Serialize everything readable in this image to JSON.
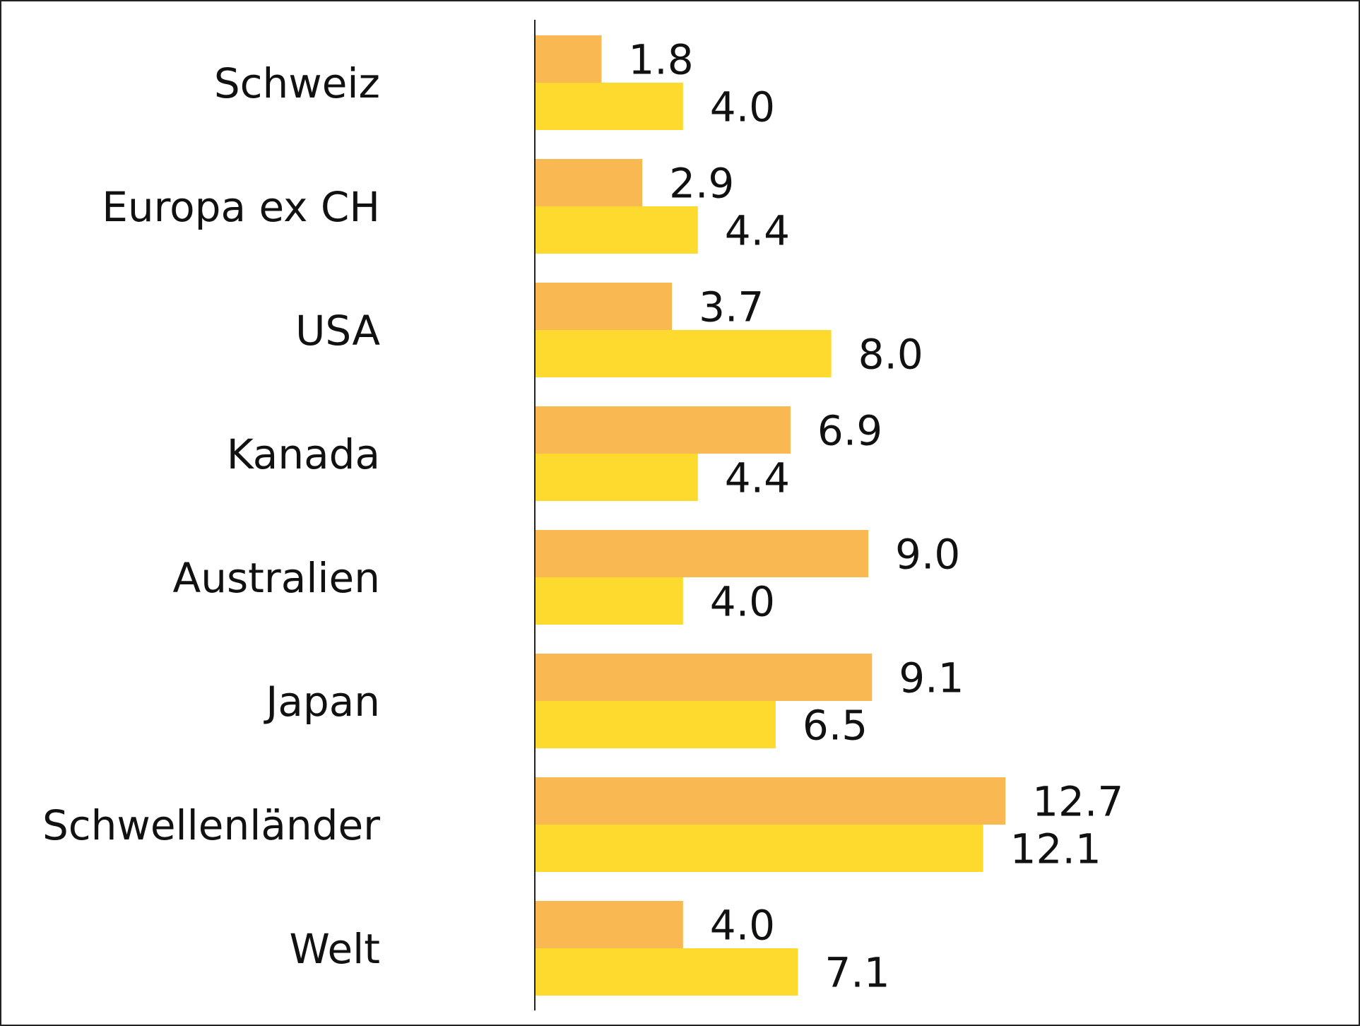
{
  "chart_data": {
    "type": "bar",
    "orientation": "horizontal",
    "categories": [
      "Schweiz",
      "Europa ex CH",
      "USA",
      "Kanada",
      "Australien",
      "Japan",
      "Schwellenländer",
      "Welt"
    ],
    "series": [
      {
        "values": [
          1.8,
          2.9,
          3.7,
          6.9,
          9.0,
          9.1,
          12.7,
          4.0
        ],
        "labels": [
          "1.8",
          "2.9",
          "3.7",
          "6.9",
          "9.0",
          "9.1",
          "12.7",
          "4.0"
        ],
        "color": "#F9B851"
      },
      {
        "values": [
          4.0,
          4.4,
          8.0,
          4.4,
          4.0,
          6.5,
          12.1,
          7.1
        ],
        "labels": [
          "4.0",
          "4.4",
          "8.0",
          "4.4",
          "4.0",
          "6.5",
          "12.1",
          "7.1"
        ],
        "color": "#FEDA2E"
      }
    ],
    "xlim": [
      0,
      16
    ],
    "grid": false,
    "legend": "none"
  }
}
